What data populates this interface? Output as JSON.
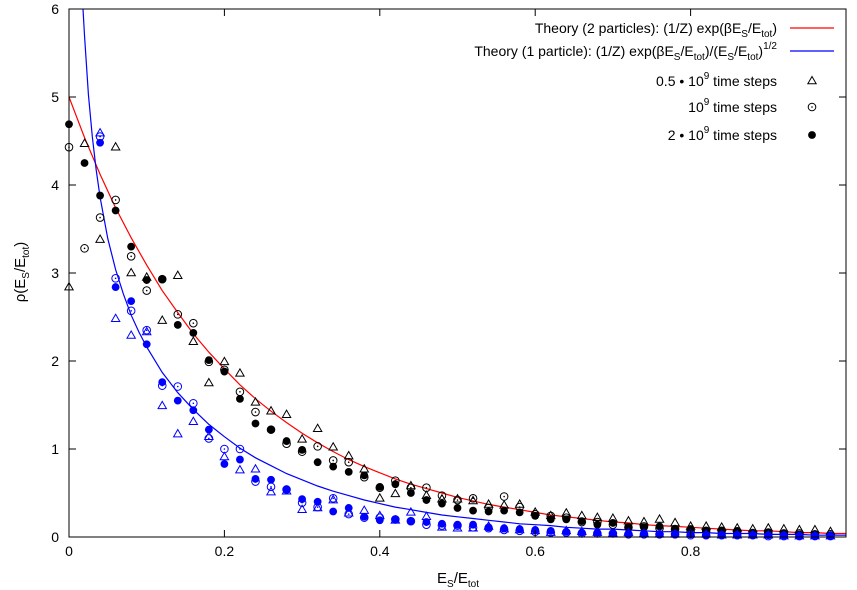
{
  "chart_data": {
    "type": "scatter",
    "xlim": [
      0,
      1
    ],
    "ylim": [
      0,
      6
    ],
    "x_ticks": [
      0,
      0.2,
      0.4,
      0.6,
      0.8
    ],
    "x_tick_labels": [
      "0",
      "0.2",
      "0.4",
      "0.6",
      "0.8"
    ],
    "y_ticks": [
      0,
      1,
      2,
      3,
      4,
      5,
      6
    ],
    "y_tick_labels": [
      "0",
      "1",
      "2",
      "3",
      "4",
      "5",
      "6"
    ],
    "xlabel": {
      "main": "E",
      "sub1": "S",
      "mid": "/E",
      "sub2": "tot"
    },
    "ylabel": {
      "pre": "ρ(E",
      "sub1": "S",
      "mid": "/E",
      "sub2": "tot",
      "post": ")"
    },
    "legend_position": "top-right",
    "grid": false,
    "colors": {
      "two_particle": "#ff0000",
      "one_particle": "#0000ff",
      "black": "#000000"
    },
    "legend": [
      {
        "kind": "line",
        "color": "#ff0000",
        "text_plain": "Theory (2 particles): (1/Z) exp(βE_S/E_tot)"
      },
      {
        "kind": "line",
        "color": "#0000ff",
        "text_plain": "Theory (1 particle): (1/Z) exp(βE_S/E_tot)/(E_S/E_tot)^1/2"
      },
      {
        "kind": "marker",
        "marker": "triangle",
        "text_plain": "0.5 • 10^9 time steps"
      },
      {
        "kind": "marker",
        "marker": "open-circle",
        "text_plain": "10^9 time steps"
      },
      {
        "kind": "marker",
        "marker": "filled-circle",
        "text_plain": "2 • 10^9 time steps"
      }
    ],
    "legend_text": {
      "l1_a": "Theory (2 particles): (1/Z) exp(βE",
      "l1_s1": "S",
      "l1_b": "/E",
      "l1_s2": "tot",
      "l1_c": ")",
      "l2_a": "Theory (1 particle): (1/Z) exp(βE",
      "l2_s1": "S",
      "l2_b": "/E",
      "l2_s2": "tot",
      "l2_c": ")/(E",
      "l2_s3": "S",
      "l2_d": "/E",
      "l2_s4": "tot",
      "l2_e": ")",
      "l2_sup": "1/2",
      "l3_a": "0.5 • 10",
      "l3_sup": "9",
      "l3_b": " time steps",
      "l4_a": "10",
      "l4_sup": "9",
      "l4_b": " time steps",
      "l5_a": "2 • 10",
      "l5_sup": "9",
      "l5_b": " time steps"
    },
    "theory_curves": [
      {
        "name": "Theory (2 particles)",
        "color": "#ff0000",
        "x": [
          0,
          0.02,
          0.04,
          0.06,
          0.08,
          0.1,
          0.12,
          0.14,
          0.16,
          0.18,
          0.2,
          0.22,
          0.24,
          0.26,
          0.28,
          0.3,
          0.32,
          0.34,
          0.36,
          0.38,
          0.4,
          0.42,
          0.44,
          0.46,
          0.48,
          0.5,
          0.52,
          0.54,
          0.56,
          0.58,
          0.6,
          0.62,
          0.64,
          0.66,
          0.68,
          0.7,
          0.72,
          0.74,
          0.76,
          0.78,
          0.8,
          0.82,
          0.84,
          0.86,
          0.88,
          0.9,
          0.92,
          0.94,
          0.96,
          0.98,
          1.0
        ],
        "y": [
          5.0,
          4.54,
          4.12,
          3.74,
          3.4,
          3.09,
          2.8,
          2.55,
          2.31,
          2.1,
          1.91,
          1.73,
          1.57,
          1.43,
          1.3,
          1.18,
          1.07,
          0.97,
          0.88,
          0.8,
          0.73,
          0.66,
          0.6,
          0.55,
          0.5,
          0.45,
          0.41,
          0.37,
          0.34,
          0.31,
          0.28,
          0.25,
          0.23,
          0.21,
          0.19,
          0.17,
          0.16,
          0.14,
          0.13,
          0.12,
          0.11,
          0.1,
          0.09,
          0.08,
          0.07,
          0.07,
          0.06,
          0.05,
          0.05,
          0.04,
          0.04
        ]
      },
      {
        "name": "Theory (1 particle)",
        "color": "#0000ff",
        "x": [
          0.018,
          0.02,
          0.025,
          0.03,
          0.035,
          0.04,
          0.05,
          0.06,
          0.07,
          0.08,
          0.09,
          0.1,
          0.12,
          0.14,
          0.16,
          0.18,
          0.2,
          0.22,
          0.24,
          0.26,
          0.28,
          0.3,
          0.32,
          0.34,
          0.36,
          0.38,
          0.4,
          0.42,
          0.44,
          0.46,
          0.48,
          0.5,
          0.52,
          0.54,
          0.56,
          0.58,
          0.6,
          0.62,
          0.64,
          0.66,
          0.68,
          0.7,
          0.72,
          0.74,
          0.76,
          0.78,
          0.8,
          0.82,
          0.84,
          0.86,
          0.88,
          0.9,
          0.92,
          0.94,
          0.96,
          0.98,
          1.0
        ],
        "y": [
          6.0,
          5.7,
          5.03,
          4.55,
          4.17,
          3.86,
          3.39,
          3.04,
          2.76,
          2.52,
          2.33,
          2.16,
          1.87,
          1.64,
          1.45,
          1.28,
          1.14,
          1.01,
          0.9,
          0.81,
          0.72,
          0.65,
          0.58,
          0.52,
          0.47,
          0.42,
          0.38,
          0.34,
          0.31,
          0.28,
          0.25,
          0.23,
          0.21,
          0.19,
          0.17,
          0.15,
          0.14,
          0.13,
          0.11,
          0.1,
          0.09,
          0.09,
          0.08,
          0.07,
          0.06,
          0.06,
          0.05,
          0.05,
          0.04,
          0.04,
          0.04,
          0.03,
          0.03,
          0.03,
          0.02,
          0.02,
          0.02
        ]
      }
    ],
    "series": [
      {
        "name": "0.5 • 10^9 time steps (2 particles)",
        "marker": "triangle",
        "color": "#000000",
        "x": [
          0,
          0.02,
          0.04,
          0.06,
          0.08,
          0.1,
          0.12,
          0.14,
          0.16,
          0.18,
          0.2,
          0.22,
          0.24,
          0.26,
          0.28,
          0.3,
          0.32,
          0.34,
          0.36,
          0.38,
          0.4,
          0.42,
          0.44,
          0.46,
          0.48,
          0.5,
          0.52,
          0.54,
          0.56,
          0.58,
          0.6,
          0.62,
          0.64,
          0.66,
          0.68,
          0.7,
          0.72,
          0.74,
          0.76,
          0.78,
          0.8,
          0.82,
          0.84,
          0.86,
          0.88,
          0.9,
          0.92,
          0.94,
          0.96,
          0.98
        ],
        "y": [
          2.84,
          4.47,
          3.38,
          4.43,
          3.0,
          2.95,
          2.46,
          2.97,
          2.22,
          1.75,
          1.99,
          1.86,
          1.53,
          1.43,
          1.39,
          1.11,
          1.23,
          1.02,
          0.92,
          0.77,
          0.44,
          0.49,
          0.58,
          0.47,
          0.43,
          0.43,
          0.41,
          0.37,
          0.36,
          0.37,
          0.28,
          0.24,
          0.27,
          0.24,
          0.22,
          0.21,
          0.18,
          0.17,
          0.2,
          0.16,
          0.12,
          0.12,
          0.11,
          0.1,
          0.09,
          0.1,
          0.09,
          0.08,
          0.08,
          0.06
        ]
      },
      {
        "name": "10^9 time steps (2 particles)",
        "marker": "open-circle",
        "color": "#000000",
        "x": [
          0,
          0.02,
          0.04,
          0.06,
          0.08,
          0.1,
          0.12,
          0.14,
          0.16,
          0.18,
          0.2,
          0.22,
          0.24,
          0.26,
          0.28,
          0.3,
          0.32,
          0.34,
          0.36,
          0.38,
          0.4,
          0.42,
          0.44,
          0.46,
          0.48,
          0.5,
          0.52,
          0.54,
          0.56,
          0.58,
          0.6,
          0.62,
          0.64,
          0.66,
          0.68,
          0.7,
          0.72,
          0.74,
          0.76,
          0.78,
          0.8,
          0.82,
          0.84,
          0.86,
          0.88,
          0.9,
          0.92,
          0.94,
          0.96,
          0.98
        ],
        "y": [
          4.43,
          3.28,
          3.63,
          3.83,
          3.19,
          2.8,
          2.93,
          2.53,
          2.43,
          1.99,
          1.9,
          1.65,
          1.42,
          1.22,
          1.06,
          0.97,
          1.03,
          0.87,
          0.85,
          0.68,
          0.56,
          0.64,
          0.56,
          0.56,
          0.47,
          0.42,
          0.44,
          0.33,
          0.46,
          0.34,
          0.26,
          0.24,
          0.22,
          0.17,
          0.17,
          0.14,
          0.11,
          0.12,
          0.1,
          0.09,
          0.07,
          0.07,
          0.07,
          0.06,
          0.04,
          0.05,
          0.04,
          0.04,
          0.03,
          0.03
        ]
      },
      {
        "name": "2 • 10^9 time steps (2 particles)",
        "marker": "filled-circle",
        "color": "#000000",
        "x": [
          0,
          0.02,
          0.04,
          0.06,
          0.08,
          0.1,
          0.12,
          0.14,
          0.16,
          0.18,
          0.2,
          0.22,
          0.24,
          0.26,
          0.28,
          0.3,
          0.32,
          0.34,
          0.36,
          0.38,
          0.4,
          0.42,
          0.44,
          0.46,
          0.48,
          0.5,
          0.52,
          0.54,
          0.56,
          0.58,
          0.6,
          0.62,
          0.64,
          0.66,
          0.68,
          0.7,
          0.72,
          0.74,
          0.76,
          0.78,
          0.8,
          0.82,
          0.84,
          0.86,
          0.88,
          0.9,
          0.92,
          0.94,
          0.96,
          0.98
        ],
        "y": [
          4.69,
          4.25,
          3.88,
          3.71,
          3.3,
          2.92,
          2.93,
          2.41,
          2.32,
          2.01,
          1.88,
          1.57,
          1.29,
          1.22,
          1.09,
          0.99,
          0.85,
          0.8,
          0.74,
          0.7,
          0.57,
          0.6,
          0.5,
          0.42,
          0.38,
          0.33,
          0.3,
          0.29,
          0.3,
          0.28,
          0.24,
          0.2,
          0.2,
          0.18,
          0.14,
          0.16,
          0.11,
          0.11,
          0.12,
          0.09,
          0.09,
          0.07,
          0.07,
          0.07,
          0.05,
          0.05,
          0.04,
          0.03,
          0.03,
          0.02
        ]
      },
      {
        "name": "0.5 • 10^9 time steps (1 particle)",
        "marker": "triangle",
        "color": "#0000ff",
        "x": [
          0.04,
          0.06,
          0.08,
          0.1,
          0.12,
          0.14,
          0.16,
          0.18,
          0.2,
          0.22,
          0.24,
          0.26,
          0.28,
          0.3,
          0.32,
          0.34,
          0.36,
          0.38,
          0.4,
          0.42,
          0.44,
          0.46,
          0.48,
          0.5,
          0.52,
          0.54,
          0.56,
          0.58,
          0.6,
          0.62,
          0.64,
          0.66,
          0.68,
          0.7,
          0.72,
          0.74,
          0.76,
          0.78,
          0.8,
          0.82,
          0.84,
          0.86,
          0.88,
          0.9,
          0.92,
          0.94,
          0.96,
          0.98
        ],
        "y": [
          4.59,
          2.48,
          2.29,
          2.33,
          1.49,
          1.17,
          1.31,
          1.14,
          0.91,
          0.76,
          0.77,
          0.51,
          0.52,
          0.31,
          0.33,
          0.42,
          0.27,
          0.3,
          0.24,
          0.19,
          0.28,
          0.23,
          0.11,
          0.1,
          0.1,
          0.12,
          0.09,
          0.08,
          0.07,
          0.05,
          0.07,
          0.06,
          0.05,
          0.04,
          0.05,
          0.04,
          0.03,
          0.03,
          0.03,
          0.03,
          0.02,
          0.02,
          0.02,
          0.02,
          0.01,
          0.01,
          0.01,
          0.01
        ]
      },
      {
        "name": "10^9 time steps (1 particle)",
        "marker": "open-circle",
        "color": "#0000ff",
        "x": [
          0.04,
          0.06,
          0.08,
          0.1,
          0.12,
          0.14,
          0.16,
          0.18,
          0.2,
          0.22,
          0.24,
          0.26,
          0.28,
          0.3,
          0.32,
          0.34,
          0.36,
          0.38,
          0.4,
          0.42,
          0.44,
          0.46,
          0.48,
          0.5,
          0.52,
          0.54,
          0.56,
          0.58,
          0.6,
          0.62,
          0.64,
          0.66,
          0.68,
          0.7,
          0.72,
          0.74,
          0.76,
          0.78,
          0.8,
          0.82,
          0.84,
          0.86,
          0.88,
          0.9,
          0.92,
          0.94,
          0.96,
          0.98
        ],
        "y": [
          4.55,
          2.94,
          2.57,
          2.35,
          1.72,
          1.71,
          1.52,
          1.12,
          1.0,
          1.0,
          0.63,
          0.57,
          0.54,
          0.39,
          0.34,
          0.44,
          0.26,
          0.22,
          0.22,
          0.2,
          0.18,
          0.14,
          0.13,
          0.13,
          0.11,
          0.1,
          0.08,
          0.07,
          0.06,
          0.05,
          0.05,
          0.04,
          0.04,
          0.04,
          0.03,
          0.03,
          0.03,
          0.03,
          0.02,
          0.02,
          0.02,
          0.02,
          0.02,
          0.01,
          0.01,
          0.01,
          0.01,
          0.01
        ]
      },
      {
        "name": "2 • 10^9 time steps (1 particle)",
        "marker": "filled-circle",
        "color": "#0000ff",
        "x": [
          0.04,
          0.06,
          0.08,
          0.1,
          0.12,
          0.14,
          0.16,
          0.18,
          0.2,
          0.22,
          0.24,
          0.26,
          0.28,
          0.3,
          0.32,
          0.34,
          0.36,
          0.38,
          0.4,
          0.42,
          0.44,
          0.46,
          0.48,
          0.5,
          0.52,
          0.54,
          0.56,
          0.58,
          0.6,
          0.62,
          0.64,
          0.66,
          0.68,
          0.7,
          0.72,
          0.74,
          0.76,
          0.78,
          0.8,
          0.82,
          0.84,
          0.86,
          0.88,
          0.9,
          0.92,
          0.94,
          0.96,
          0.98
        ],
        "y": [
          4.48,
          2.84,
          2.68,
          2.19,
          1.76,
          1.55,
          1.44,
          1.22,
          0.83,
          0.88,
          0.66,
          0.65,
          0.54,
          0.43,
          0.4,
          0.29,
          0.33,
          0.23,
          0.19,
          0.2,
          0.18,
          0.17,
          0.15,
          0.14,
          0.14,
          0.11,
          0.1,
          0.09,
          0.08,
          0.07,
          0.06,
          0.05,
          0.05,
          0.04,
          0.04,
          0.04,
          0.03,
          0.03,
          0.03,
          0.02,
          0.02,
          0.02,
          0.02,
          0.02,
          0.02,
          0.01,
          0.01,
          0.01
        ]
      }
    ]
  }
}
